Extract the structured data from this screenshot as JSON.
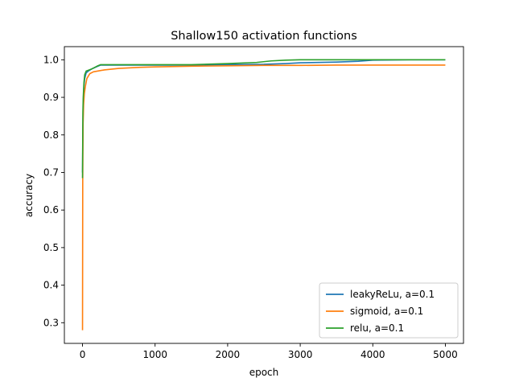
{
  "chart_data": {
    "type": "line",
    "title": "Shallow150 activation functions",
    "xlabel": "epoch",
    "ylabel": "accuracy",
    "xlim": [
      -250,
      5250
    ],
    "ylim": [
      0.245,
      1.035
    ],
    "xticks": [
      0,
      1000,
      2000,
      3000,
      4000,
      5000
    ],
    "xtick_labels": [
      "0",
      "1000",
      "2000",
      "3000",
      "4000",
      "5000"
    ],
    "yticks": [
      0.3,
      0.4,
      0.5,
      0.6,
      0.7,
      0.8,
      0.9,
      1.0
    ],
    "ytick_labels": [
      "0.3",
      "0.4",
      "0.5",
      "0.6",
      "0.7",
      "0.8",
      "0.9",
      "1.0"
    ],
    "grid": false,
    "legend_position": "lower-right",
    "series": [
      {
        "name": "leakyReLu, a=0.1",
        "color": "#1f77b4",
        "x": [
          0,
          5,
          10,
          20,
          30,
          50,
          80,
          120,
          200,
          250,
          400,
          800,
          1500,
          2000,
          2500,
          2800,
          3000,
          3500,
          3800,
          4000,
          4500,
          5000
        ],
        "y": [
          0.7,
          0.82,
          0.88,
          0.93,
          0.95,
          0.965,
          0.97,
          0.975,
          0.982,
          0.986,
          0.986,
          0.986,
          0.986,
          0.987,
          0.988,
          0.99,
          0.992,
          0.994,
          0.996,
          0.999,
          1.0,
          1.0
        ]
      },
      {
        "name": "sigmoid, a=0.1",
        "color": "#ff7f0e",
        "x": [
          0,
          3,
          8,
          15,
          25,
          40,
          60,
          100,
          150,
          300,
          500,
          800,
          1000,
          1500,
          2000,
          2500,
          3000,
          3500,
          4000,
          4500,
          5000
        ],
        "y": [
          0.28,
          0.68,
          0.83,
          0.88,
          0.91,
          0.93,
          0.95,
          0.963,
          0.968,
          0.973,
          0.977,
          0.98,
          0.981,
          0.983,
          0.984,
          0.985,
          0.985,
          0.986,
          0.986,
          0.986,
          0.986
        ]
      },
      {
        "name": "relu, a=0.1",
        "color": "#2ca02c",
        "x": [
          0,
          5,
          10,
          20,
          30,
          50,
          80,
          120,
          200,
          250,
          400,
          800,
          1500,
          2000,
          2400,
          2600,
          2800,
          3000,
          3500,
          4000,
          4500,
          5000
        ],
        "y": [
          0.685,
          0.86,
          0.9,
          0.94,
          0.96,
          0.97,
          0.972,
          0.975,
          0.983,
          0.987,
          0.987,
          0.987,
          0.987,
          0.99,
          0.993,
          0.997,
          0.999,
          1.0,
          1.0,
          1.0,
          1.0,
          1.0
        ]
      }
    ]
  }
}
